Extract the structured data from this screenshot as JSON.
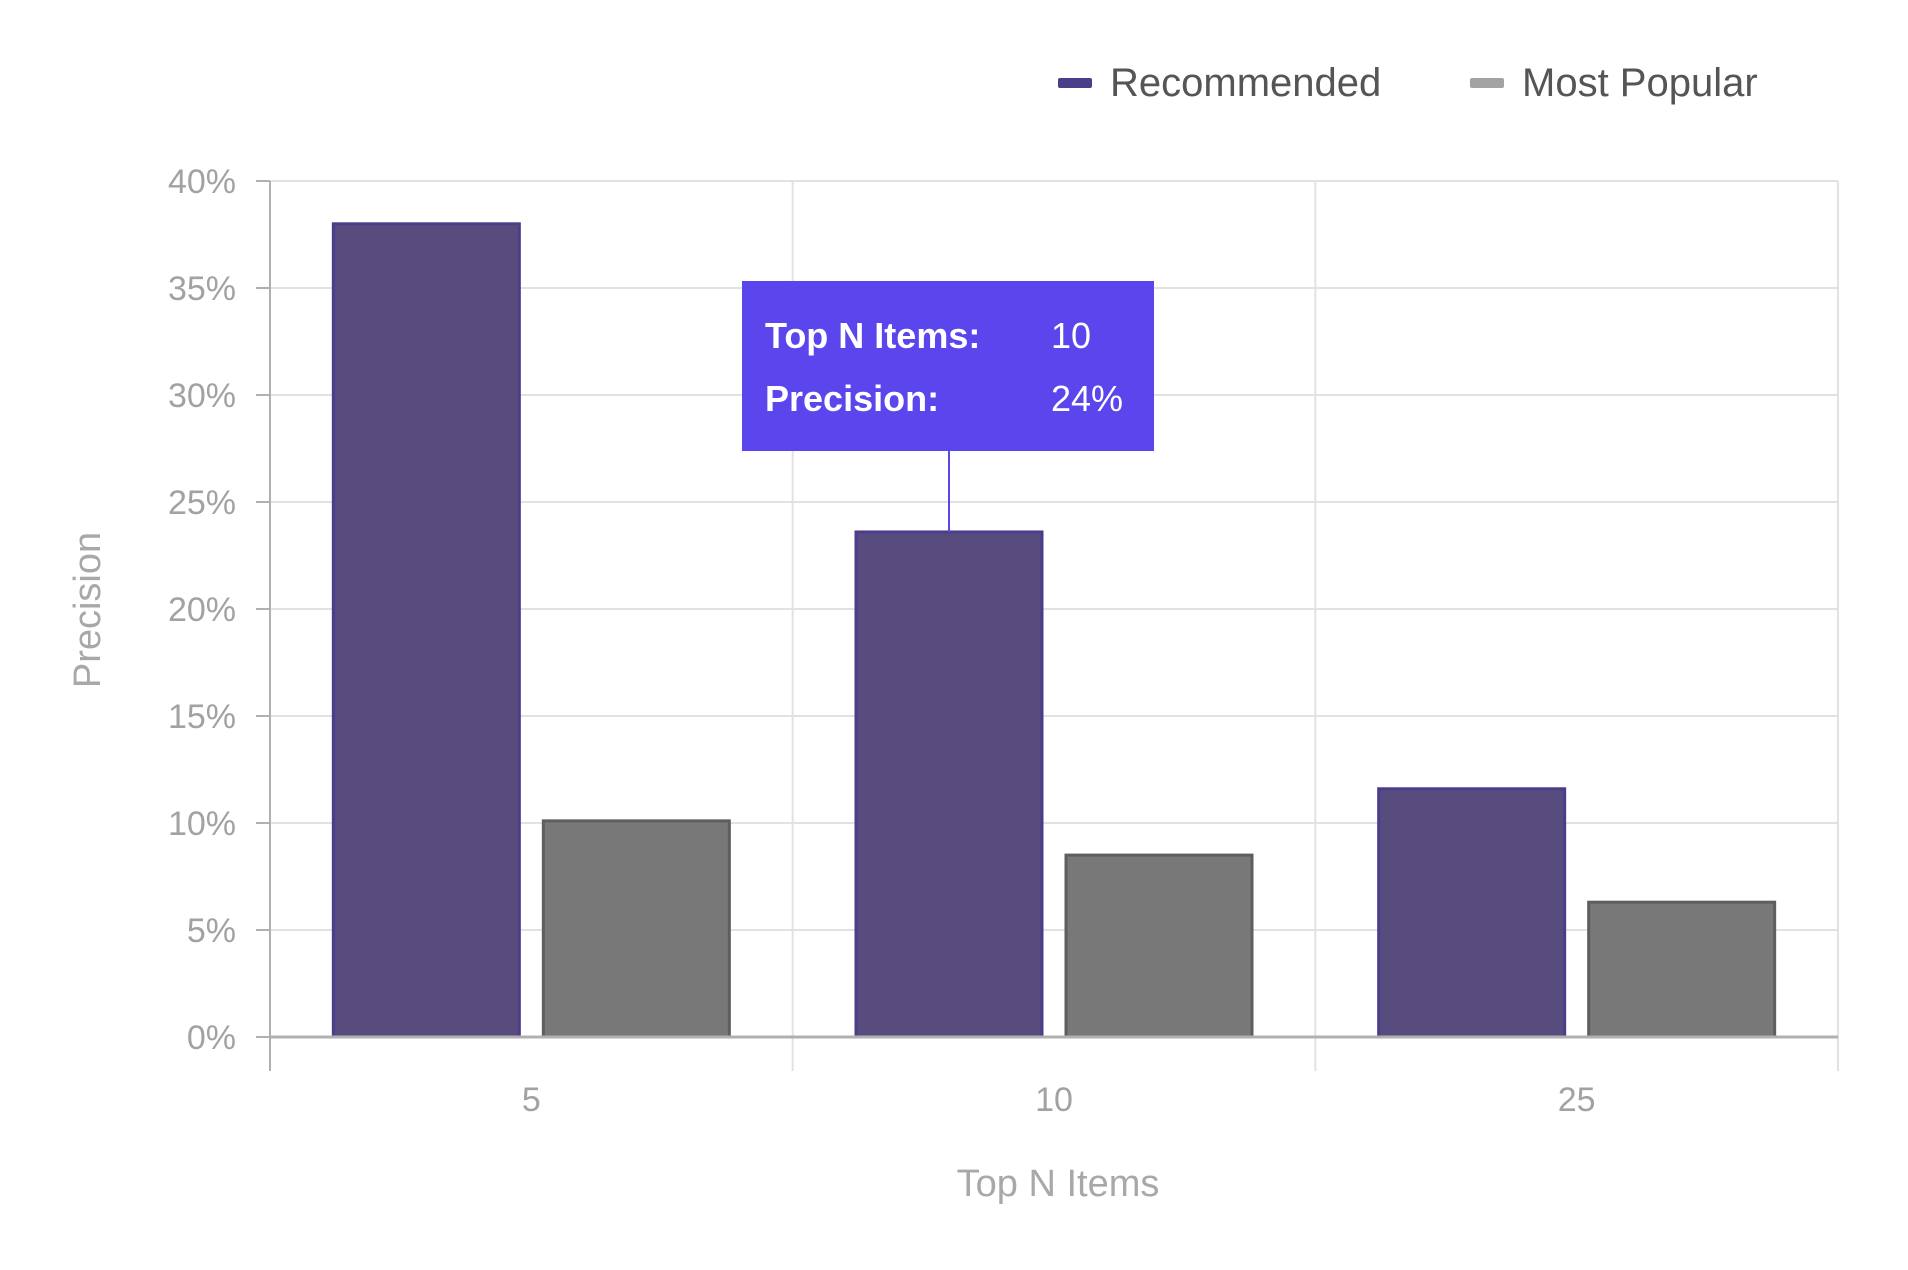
{
  "chart_data": {
    "type": "bar",
    "categories": [
      "5",
      "10",
      "25"
    ],
    "series": [
      {
        "name": "Recommended",
        "values": [
          38,
          23.6,
          11.6
        ],
        "color": "#584c7f",
        "border": "#4b3d8a"
      },
      {
        "name": "Most Popular",
        "values": [
          10.1,
          8.5,
          6.3
        ],
        "color": "#787878",
        "border": "#5e5e5e"
      }
    ],
    "xlabel": "Top N Items",
    "ylabel": "Precision",
    "ylim": [
      0,
      40
    ],
    "yticks": [
      0,
      5,
      10,
      15,
      20,
      25,
      30,
      35,
      40
    ],
    "ytick_labels": [
      "0%",
      "5%",
      "10%",
      "15%",
      "20%",
      "25%",
      "30%",
      "35%",
      "40%"
    ],
    "grid": true,
    "legend": "top-right"
  },
  "tooltip": {
    "category": "10",
    "series": "Recommended",
    "row1_label": "Top N Items:",
    "row1_value": "10",
    "row2_label": "Precision:",
    "row2_value": "24%",
    "background": "#5b45ed"
  },
  "colors": {
    "gridline": "#e2e2e2",
    "axis": "#b0b0b0"
  }
}
